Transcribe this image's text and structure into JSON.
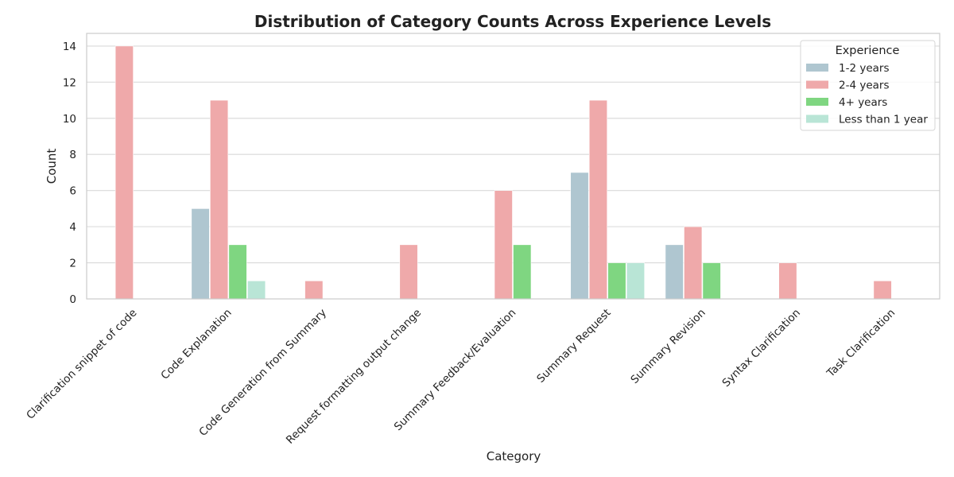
{
  "chart_data": {
    "type": "bar",
    "title": "Distribution of Category Counts Across Experience Levels",
    "xlabel": "Category",
    "ylabel": "Count",
    "ylim": [
      0,
      14.7
    ],
    "yticks": [
      0,
      2,
      4,
      6,
      8,
      10,
      12,
      14
    ],
    "grid": "horizontal",
    "legend": {
      "title": "Experience",
      "placement": "top-right"
    },
    "categories": [
      "Clarification snippet of code",
      "Code Explanation",
      "Code Generation from Summary",
      "Request formatting output change",
      "Summary Feedback/Evaluation",
      "Summary Request",
      "Summary Revision",
      "Syntax Clarification",
      "Task Clarification"
    ],
    "series": [
      {
        "name": "1-2 years",
        "color": "#afc6d0",
        "values": [
          0,
          5,
          0,
          0,
          0,
          7,
          3,
          0,
          0
        ]
      },
      {
        "name": "2-4 years",
        "color": "#efa9aa",
        "values": [
          14,
          11,
          1,
          3,
          6,
          11,
          4,
          2,
          1
        ]
      },
      {
        "name": "4+ years",
        "color": "#7fd681",
        "values": [
          0,
          3,
          0,
          0,
          3,
          2,
          2,
          0,
          0
        ]
      },
      {
        "name": "Less than 1 year",
        "color": "#b9e5d6",
        "values": [
          0,
          1,
          0,
          0,
          0,
          2,
          0,
          0,
          0
        ]
      }
    ]
  }
}
